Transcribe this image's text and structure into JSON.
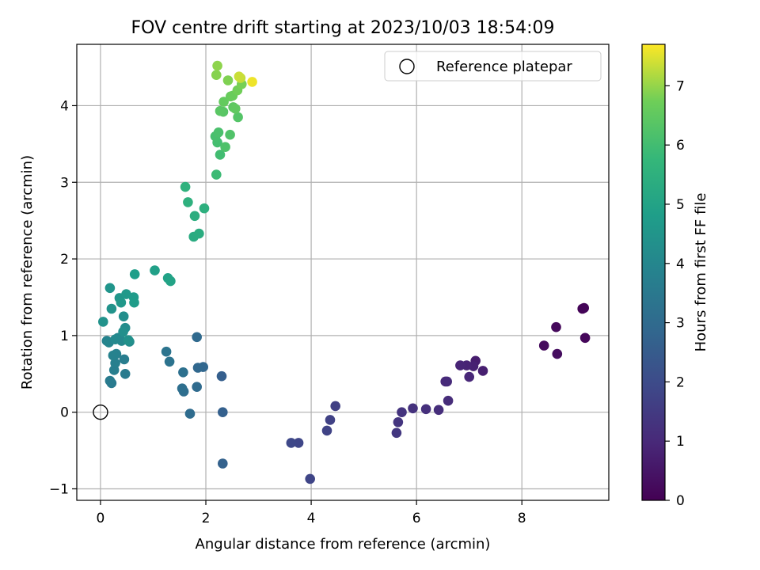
{
  "chart_data": {
    "type": "scatter",
    "title": "FOV centre drift starting at 2023/10/03 18:54:09",
    "xlabel": "Angular distance from reference (arcmin)",
    "ylabel": "Rotation from reference (arcmin)",
    "xlim": [
      -0.45,
      9.65
    ],
    "ylim": [
      -1.15,
      4.8
    ],
    "x_ticks": [
      0,
      2,
      4,
      6,
      8
    ],
    "y_ticks": [
      -1,
      0,
      1,
      2,
      3,
      4
    ],
    "grid": true,
    "legend": {
      "placement": "top-right",
      "entries": [
        "Reference platepar"
      ]
    },
    "reference_point": {
      "x": 0,
      "y": 0,
      "label": "Reference platepar"
    },
    "colorbar": {
      "label": "Hours from first FF file",
      "range": [
        0,
        7.7
      ],
      "ticks": [
        0,
        1,
        2,
        3,
        4,
        5,
        6,
        7
      ],
      "colormap": "viridis"
    },
    "series": [
      {
        "points": [
          [
            9.15,
            1.35,
            0.05
          ],
          [
            9.18,
            1.36,
            0.1
          ],
          [
            9.2,
            0.97,
            0.15
          ],
          [
            8.65,
            1.11,
            0.2
          ],
          [
            8.42,
            0.87,
            0.25
          ],
          [
            8.67,
            0.76,
            0.3
          ],
          [
            7.12,
            0.67,
            0.7
          ],
          [
            7.26,
            0.54,
            0.75
          ],
          [
            7.08,
            0.6,
            0.8
          ],
          [
            6.95,
            0.61,
            0.85
          ],
          [
            6.83,
            0.61,
            0.9
          ],
          [
            7.0,
            0.46,
            0.95
          ],
          [
            6.55,
            0.4,
            1.0
          ],
          [
            6.58,
            0.4,
            1.05
          ],
          [
            6.6,
            0.15,
            1.1
          ],
          [
            6.42,
            0.03,
            1.15
          ],
          [
            6.18,
            0.04,
            1.2
          ],
          [
            5.93,
            0.05,
            1.25
          ],
          [
            5.72,
            0.0,
            1.3
          ],
          [
            5.65,
            -0.13,
            1.35
          ],
          [
            5.62,
            -0.27,
            1.4
          ],
          [
            4.46,
            0.08,
            1.65
          ],
          [
            4.36,
            -0.1,
            1.7
          ],
          [
            4.3,
            -0.24,
            1.75
          ],
          [
            3.98,
            -0.87,
            1.8
          ],
          [
            3.76,
            -0.4,
            1.85
          ],
          [
            3.62,
            -0.4,
            1.9
          ],
          [
            2.3,
            0.47,
            2.6
          ],
          [
            2.32,
            0.0,
            2.65
          ],
          [
            2.32,
            -0.67,
            2.7
          ],
          [
            1.95,
            0.59,
            2.85
          ],
          [
            1.85,
            0.58,
            2.9
          ],
          [
            1.83,
            0.98,
            2.95
          ],
          [
            1.83,
            0.33,
            3.0
          ],
          [
            1.7,
            -0.02,
            3.05
          ],
          [
            1.58,
            0.27,
            3.1
          ],
          [
            1.55,
            0.31,
            3.15
          ],
          [
            1.57,
            0.52,
            3.2
          ],
          [
            1.31,
            0.66,
            3.3
          ],
          [
            1.25,
            0.79,
            3.35
          ],
          [
            0.47,
            0.5,
            3.6
          ],
          [
            0.45,
            0.69,
            3.65
          ],
          [
            0.26,
            0.55,
            3.7
          ],
          [
            0.28,
            0.64,
            3.75
          ],
          [
            0.3,
            0.76,
            3.8
          ],
          [
            0.24,
            0.74,
            3.85
          ],
          [
            0.21,
            0.38,
            3.55
          ],
          [
            0.18,
            0.41,
            3.6
          ],
          [
            0.12,
            0.93,
            3.9
          ],
          [
            0.16,
            0.91,
            3.95
          ],
          [
            0.33,
            0.97,
            4.0
          ],
          [
            0.4,
            0.93,
            4.05
          ],
          [
            0.28,
            0.95,
            4.1
          ],
          [
            0.55,
            0.92,
            4.15
          ],
          [
            0.47,
            1.1,
            4.2
          ],
          [
            0.44,
            1.25,
            4.25
          ],
          [
            0.43,
            1.05,
            4.3
          ],
          [
            0.53,
            0.94,
            4.35
          ],
          [
            0.05,
            1.18,
            4.4
          ],
          [
            0.21,
            1.35,
            4.45
          ],
          [
            0.18,
            1.62,
            4.5
          ],
          [
            0.36,
            1.49,
            4.55
          ],
          [
            0.39,
            1.43,
            4.6
          ],
          [
            0.49,
            1.54,
            4.65
          ],
          [
            0.63,
            1.5,
            4.7
          ],
          [
            0.64,
            1.43,
            4.75
          ],
          [
            0.65,
            1.8,
            4.8
          ],
          [
            1.03,
            1.85,
            4.9
          ],
          [
            1.28,
            1.75,
            4.95
          ],
          [
            1.33,
            1.71,
            5.0
          ],
          [
            1.77,
            2.29,
            5.3
          ],
          [
            1.87,
            2.33,
            5.35
          ],
          [
            1.79,
            2.56,
            5.4
          ],
          [
            1.97,
            2.66,
            5.45
          ],
          [
            1.66,
            2.74,
            5.5
          ],
          [
            1.61,
            2.94,
            5.55
          ],
          [
            2.2,
            3.1,
            5.9
          ],
          [
            2.27,
            3.36,
            6.0
          ],
          [
            2.22,
            3.52,
            6.05
          ],
          [
            2.18,
            3.6,
            6.1
          ],
          [
            2.24,
            3.65,
            6.15
          ],
          [
            2.37,
            3.46,
            6.2
          ],
          [
            2.46,
            3.62,
            6.25
          ],
          [
            2.61,
            3.85,
            6.3
          ],
          [
            2.33,
            3.92,
            6.35
          ],
          [
            2.27,
            3.93,
            6.4
          ],
          [
            2.52,
            3.98,
            6.45
          ],
          [
            2.56,
            3.96,
            6.5
          ],
          [
            2.34,
            4.05,
            6.55
          ],
          [
            2.47,
            4.12,
            6.6
          ],
          [
            2.51,
            4.13,
            6.65
          ],
          [
            2.6,
            4.2,
            6.75
          ],
          [
            2.68,
            4.28,
            6.8
          ],
          [
            2.42,
            4.33,
            6.85
          ],
          [
            2.2,
            4.4,
            6.9
          ],
          [
            2.22,
            4.52,
            6.95
          ],
          [
            2.66,
            4.36,
            7.3
          ],
          [
            2.63,
            4.38,
            7.35
          ],
          [
            2.88,
            4.31,
            7.6
          ]
        ]
      }
    ]
  }
}
